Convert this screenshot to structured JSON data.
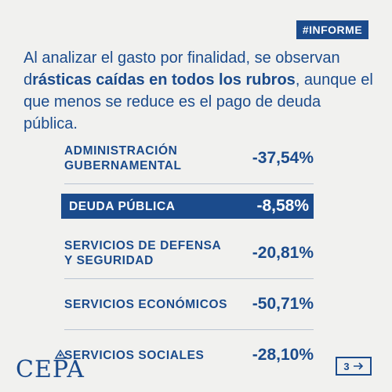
{
  "tag": "#INFORME",
  "intro": {
    "part1": "Al analizar el gasto por finalidad, se observan d",
    "bold1": "rásticas caídas en todos los rubros",
    "part2": ", aunque el que menos se reduce es el pago de deuda pública."
  },
  "rows": [
    {
      "label": "ADMINISTRACIÓN GUBERNAMENTAL",
      "value": "-37,54%"
    },
    {
      "label": "DEUDA PÚBLICA",
      "value": "-8,58%",
      "highlighted": true
    },
    {
      "label": "SERVICIOS DE DEFENSA Y SEGURIDAD",
      "value": "-20,81%"
    },
    {
      "label": "SERVICIOS ECONÓMICOS",
      "value": "-50,71%"
    },
    {
      "label": "SERVICIOS SOCIALES",
      "value": "-28,10%"
    }
  ],
  "logo": "CEPA",
  "page": {
    "number": "3",
    "arrow_icon": "arrow-right-icon"
  },
  "colors": {
    "brand": "#1b4b8c",
    "background": "#f1f1ef"
  }
}
